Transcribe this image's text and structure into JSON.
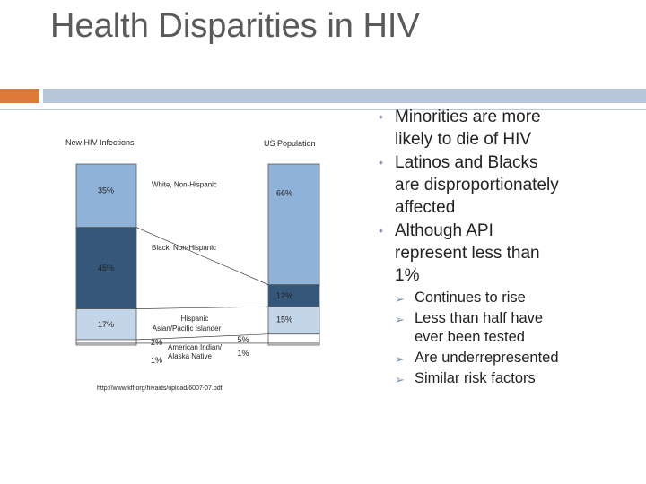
{
  "title": "Health Disparities in HIV",
  "colors": {
    "accent_orange": "#e07a3a",
    "accent_blue": "#b7c6d9",
    "white": "#8fb2d8",
    "black": "#35587a",
    "hispanic": "#c3d5e8",
    "asian": "#ffffff",
    "native": "#dde7f1",
    "border": "#5a5a5a"
  },
  "chart_data": {
    "type": "stacked-bar",
    "series": [
      {
        "name": "New HIV Infections",
        "label": "New HIV Infections",
        "values": [
          35,
          45,
          17,
          2,
          1
        ],
        "value_labels": [
          "35%",
          "45%",
          "17%",
          "2%",
          "1%"
        ]
      },
      {
        "name": "US Population",
        "label": "US  Population",
        "values": [
          66,
          12,
          15,
          5,
          1
        ],
        "value_labels": [
          "66%",
          "12%",
          "15%",
          "5%",
          "1%"
        ]
      }
    ],
    "categories": [
      "White, Non-Hispanic",
      "Black, Non-Hispanic",
      "Hispanic",
      "Asian/Pacific Islander",
      "American Indian/ Alaska Native"
    ],
    "category_labels": [
      "White, Non-Hispanic",
      "Black, Non-Hispanic",
      "Hispanic",
      "Asian/Pacific Islander",
      "American Indian/\nAlaska Native"
    ],
    "annotations": [
      "http://www.kff.org/hivaids/upload/6007-07.pdf"
    ]
  },
  "bullets": [
    {
      "text": "Minorities are more likely to die of HIV",
      "lines": [
        "Minorities are more",
        "likely to die of HIV"
      ]
    },
    {
      "text": "Latinos and Blacks are disproportionately affected",
      "lines": [
        "Latinos and Blacks",
        "are disproportionately",
        "affected"
      ]
    },
    {
      "text": "Although API represent less than 1%",
      "lines": [
        "Although API",
        "represent less than",
        "1%"
      ]
    }
  ],
  "sub_bullets": [
    {
      "text": "Continues to rise",
      "lines": [
        "Continues to rise"
      ]
    },
    {
      "text": "Less than half have ever been tested",
      "lines": [
        "Less than half have",
        "ever been tested"
      ]
    },
    {
      "text": "Are underrepresented",
      "lines": [
        "Are underrepresented"
      ]
    },
    {
      "text": "Similar risk factors",
      "lines": [
        "Similar risk factors"
      ]
    }
  ]
}
